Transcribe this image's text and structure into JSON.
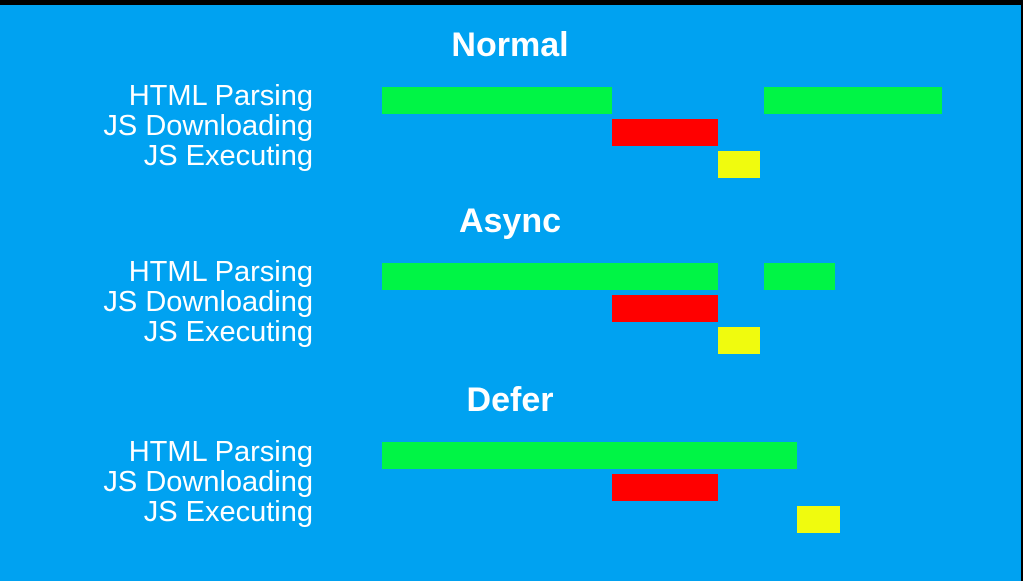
{
  "colors": {
    "background": "#00a2f1",
    "parsing": "#00f545",
    "downloading": "#ff0000",
    "executing": "#f0fb0e",
    "text": "#ffffff"
  },
  "row_labels": [
    "HTML Parsing",
    "JS Downloading",
    "JS Executing"
  ],
  "sections": [
    {
      "title": "Normal",
      "rows": [
        {
          "label": "HTML Parsing",
          "segments": [
            [
              0,
              230
            ],
            [
              382,
              560
            ]
          ]
        },
        {
          "label": "JS Downloading",
          "segments": [
            [
              230,
              336
            ]
          ]
        },
        {
          "label": "JS Executing",
          "segments": [
            [
              336,
              378
            ]
          ]
        }
      ]
    },
    {
      "title": "Async",
      "rows": [
        {
          "label": "HTML Parsing",
          "segments": [
            [
              0,
              336
            ],
            [
              382,
              453
            ]
          ]
        },
        {
          "label": "JS Downloading",
          "segments": [
            [
              230,
              336
            ]
          ]
        },
        {
          "label": "JS Executing",
          "segments": [
            [
              336,
              378
            ]
          ]
        }
      ]
    },
    {
      "title": "Defer",
      "rows": [
        {
          "label": "HTML Parsing",
          "segments": [
            [
              0,
              415
            ]
          ]
        },
        {
          "label": "JS Downloading",
          "segments": [
            [
              230,
              336
            ]
          ]
        },
        {
          "label": "JS Executing",
          "segments": [
            [
              415,
              458
            ]
          ]
        }
      ]
    }
  ]
}
